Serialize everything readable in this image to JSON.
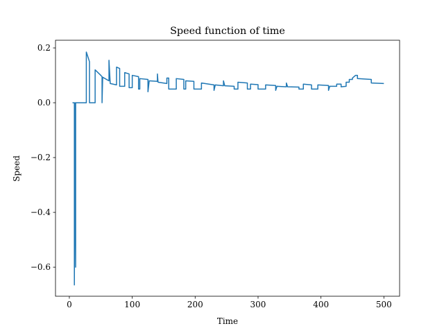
{
  "chart_data": {
    "type": "line",
    "title": "Speed function of time",
    "xlabel": "Time",
    "ylabel": "Speed",
    "color": "#1f77b4",
    "x": [
      5,
      8,
      8,
      9,
      10,
      10,
      27,
      27,
      32,
      32,
      41,
      41,
      50,
      52,
      52,
      53,
      63,
      63,
      65,
      75,
      75,
      80,
      80,
      88,
      88,
      95,
      95,
      100,
      100,
      110,
      110,
      112,
      112,
      125,
      125,
      127,
      140,
      140,
      141,
      155,
      155,
      158,
      158,
      170,
      170,
      182,
      182,
      185,
      185,
      198,
      198,
      210,
      210,
      230,
      230,
      232,
      245,
      245,
      247,
      262,
      262,
      268,
      268,
      283,
      283,
      288,
      288,
      300,
      300,
      312,
      312,
      328,
      328,
      330,
      345,
      345,
      347,
      365,
      365,
      372,
      372,
      385,
      385,
      395,
      395,
      412,
      412,
      414,
      425,
      425,
      432,
      432,
      440,
      440,
      445,
      445,
      450,
      450,
      455,
      458,
      458,
      480,
      480,
      500
    ],
    "values": [
      0,
      0,
      -0.665,
      0,
      -0.6,
      0,
      0,
      0.185,
      0.15,
      0,
      0,
      0.12,
      0.1,
      0.095,
      0,
      0.093,
      0.08,
      0.155,
      0.07,
      0.065,
      0.13,
      0.125,
      0.06,
      0.06,
      0.11,
      0.105,
      0.055,
      0.055,
      0.1,
      0.095,
      0.05,
      0.05,
      0.088,
      0.085,
      0.04,
      0.08,
      0.078,
      0.105,
      0.075,
      0.07,
      0.09,
      0.09,
      0.05,
      0.05,
      0.088,
      0.085,
      0.05,
      0.05,
      0.08,
      0.078,
      0.05,
      0.05,
      0.072,
      0.065,
      0.045,
      0.065,
      0.062,
      0.08,
      0.062,
      0.06,
      0.05,
      0.05,
      0.075,
      0.072,
      0.05,
      0.05,
      0.068,
      0.066,
      0.05,
      0.05,
      0.065,
      0.063,
      0.045,
      0.06,
      0.058,
      0.072,
      0.058,
      0.057,
      0.05,
      0.05,
      0.068,
      0.065,
      0.05,
      0.05,
      0.065,
      0.063,
      0.045,
      0.06,
      0.06,
      0.068,
      0.068,
      0.058,
      0.06,
      0.075,
      0.075,
      0.085,
      0.085,
      0.09,
      0.1,
      0.1,
      0.088,
      0.085,
      0.072,
      0.07
    ],
    "xlim": [
      -22,
      525
    ],
    "ylim": [
      -0.706,
      0.228
    ],
    "xticks": [
      0,
      100,
      200,
      300,
      400,
      500
    ],
    "yticks": [
      {
        "value": -0.6,
        "label": "−0.6"
      },
      {
        "value": -0.4,
        "label": "−0.4"
      },
      {
        "value": -0.2,
        "label": "−0.2"
      },
      {
        "value": 0,
        "label": "0.0"
      },
      {
        "value": 0.2,
        "label": "0.2"
      }
    ],
    "grid": false
  }
}
